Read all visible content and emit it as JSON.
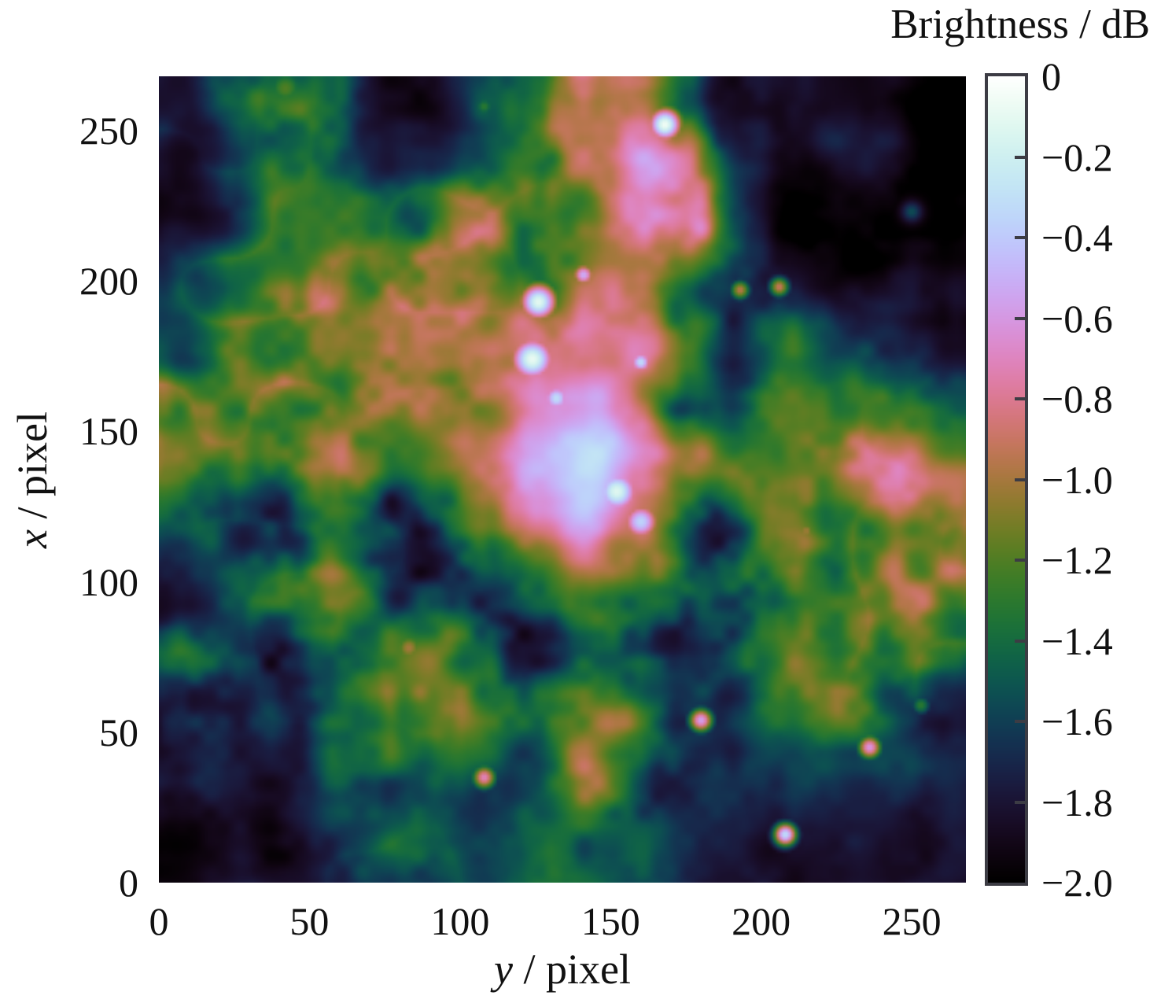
{
  "figure": {
    "xlabel": {
      "variable": "y",
      "rest": " / pixel"
    },
    "ylabel": {
      "variable": "x",
      "rest": " / pixel"
    }
  },
  "chart_data": {
    "type": "heatmap",
    "xlabel": "y / pixel",
    "ylabel": "x / pixel",
    "x_range": [
      0,
      268
    ],
    "y_range": [
      0,
      268
    ],
    "x_ticks": [
      0,
      50,
      100,
      150,
      200,
      250
    ],
    "y_ticks": [
      0,
      50,
      100,
      150,
      200,
      250
    ],
    "grid": "off",
    "colorbar": {
      "label": "Brightness / dB",
      "range": [
        -2.0,
        0
      ],
      "colormap": "cubehelix",
      "ticks": [
        {
          "value": 0,
          "label": "0"
        },
        {
          "value": -0.2,
          "label": "−0.2"
        },
        {
          "value": -0.4,
          "label": "−0.4"
        },
        {
          "value": -0.6,
          "label": "−0.6"
        },
        {
          "value": -0.8,
          "label": "−0.8"
        },
        {
          "value": -1.0,
          "label": "−1.0"
        },
        {
          "value": -1.2,
          "label": "−1.2"
        },
        {
          "value": -1.4,
          "label": "−1.4"
        },
        {
          "value": -1.6,
          "label": "−1.6"
        },
        {
          "value": -1.8,
          "label": "−1.8"
        },
        {
          "value": -2.0,
          "label": "−2.0"
        }
      ]
    },
    "brightness_grid_db": {
      "note": "Coarse 16x16 estimate of brightness (dB) read from the map. Rows top to bottom = x from 268 to 0; columns left to right = y from 0 to 268.",
      "values": [
        [
          -1.85,
          -1.6,
          -1.35,
          -1.55,
          -1.8,
          -1.75,
          -1.6,
          -1.5,
          -1.0,
          -0.85,
          -1.1,
          -1.75,
          -1.9,
          -1.9,
          -1.85,
          -1.9
        ],
        [
          -1.9,
          -1.75,
          -1.45,
          -1.5,
          -1.75,
          -1.7,
          -1.55,
          -1.5,
          -0.9,
          -0.75,
          -0.9,
          -1.6,
          -1.85,
          -1.8,
          -1.75,
          -1.9
        ],
        [
          -1.85,
          -1.7,
          -1.6,
          -1.5,
          -1.6,
          -1.5,
          -1.45,
          -1.35,
          -0.95,
          -0.85,
          -1.2,
          -1.7,
          -1.8,
          -1.85,
          -1.8,
          -1.85
        ],
        [
          -1.8,
          -1.65,
          -1.55,
          -1.45,
          -1.5,
          -1.4,
          -1.35,
          -1.15,
          -0.9,
          -0.95,
          -1.3,
          -1.6,
          -1.75,
          -1.8,
          -1.75,
          -1.8
        ],
        [
          -1.75,
          -1.55,
          -1.4,
          -1.35,
          -1.3,
          -1.25,
          -1.2,
          -1.0,
          -0.85,
          -0.9,
          -1.4,
          -1.65,
          -1.7,
          -1.7,
          -1.65,
          -1.75
        ],
        [
          -1.7,
          -1.45,
          -1.3,
          -1.25,
          -1.2,
          -1.1,
          -0.95,
          -0.75,
          -0.8,
          -0.75,
          -1.05,
          -1.6,
          -1.55,
          -1.6,
          -1.6,
          -1.7
        ],
        [
          -1.45,
          -1.4,
          -1.3,
          -1.2,
          -1.05,
          -0.9,
          -0.85,
          -0.5,
          -0.55,
          -0.8,
          -1.2,
          -1.5,
          -1.45,
          -1.55,
          -1.5,
          -1.6
        ],
        [
          -1.4,
          -1.35,
          -1.25,
          -1.15,
          -1.0,
          -0.85,
          -0.75,
          -0.45,
          -0.4,
          -0.75,
          -1.15,
          -1.4,
          -1.35,
          -1.45,
          -1.4,
          -1.55
        ],
        [
          -1.6,
          -1.5,
          -1.4,
          -1.3,
          -1.2,
          -1.1,
          -0.9,
          -0.5,
          -0.45,
          -0.8,
          -1.1,
          -1.3,
          -1.25,
          -1.35,
          -1.3,
          -1.5
        ],
        [
          -1.7,
          -1.55,
          -1.45,
          -1.35,
          -1.25,
          -1.3,
          -1.1,
          -0.85,
          -0.7,
          -0.95,
          -1.2,
          -1.25,
          -1.2,
          -1.3,
          -1.25,
          -1.45
        ],
        [
          -1.75,
          -1.5,
          -1.35,
          -1.3,
          -1.15,
          -1.05,
          -1.25,
          -1.1,
          -0.85,
          -1.0,
          -1.25,
          -1.35,
          -1.3,
          -1.25,
          -1.3,
          -1.4
        ],
        [
          -1.3,
          -1.45,
          -1.4,
          -1.35,
          -1.2,
          -1.0,
          -1.3,
          -1.5,
          -1.2,
          -1.15,
          -1.3,
          -1.4,
          -1.45,
          -1.35,
          -1.4,
          -1.5
        ],
        [
          -1.4,
          -1.5,
          -1.55,
          -1.45,
          -1.4,
          -1.35,
          -1.5,
          -1.5,
          -1.45,
          -1.3,
          -1.5,
          -1.55,
          -1.6,
          -1.5,
          -1.55,
          -1.6
        ],
        [
          -1.6,
          -1.65,
          -1.6,
          -1.55,
          -1.5,
          -1.55,
          -1.65,
          -1.7,
          -1.5,
          -1.45,
          -1.6,
          -1.7,
          -1.75,
          -1.7,
          -1.65,
          -1.7
        ],
        [
          -1.75,
          -1.7,
          -1.65,
          -1.6,
          -1.65,
          -1.7,
          -1.75,
          -1.65,
          -1.5,
          -1.55,
          -1.7,
          -1.75,
          -1.8,
          -1.8,
          -1.75,
          -1.8
        ],
        [
          -1.8,
          -1.75,
          -1.7,
          -1.65,
          -1.6,
          -1.65,
          -1.7,
          -1.6,
          -1.55,
          -1.6,
          -1.75,
          -1.8,
          -1.85,
          -1.85,
          -1.8,
          -1.85
        ]
      ]
    },
    "point_sources": [
      {
        "y": 168,
        "x": 252,
        "peak_db": -0.05,
        "sigma": 4.5
      },
      {
        "y": 126,
        "x": 193,
        "peak_db": -0.1,
        "sigma": 5
      },
      {
        "y": 124,
        "x": 174,
        "peak_db": -0.08,
        "sigma": 6
      },
      {
        "y": 132,
        "x": 161,
        "peak_db": -0.3,
        "sigma": 4
      },
      {
        "y": 152,
        "x": 130,
        "peak_db": -0.12,
        "sigma": 6
      },
      {
        "y": 160,
        "x": 120,
        "peak_db": -0.35,
        "sigma": 5
      },
      {
        "y": 147,
        "x": 140,
        "peak_db": -0.3,
        "sigma": 4
      },
      {
        "y": 160,
        "x": 173,
        "peak_db": -0.3,
        "sigma": 3
      },
      {
        "y": 141,
        "x": 202,
        "peak_db": -0.5,
        "sigma": 3
      },
      {
        "y": 123,
        "x": 147,
        "peak_db": -0.55,
        "sigma": 3
      },
      {
        "y": 108,
        "x": 35,
        "peak_db": -0.7,
        "sigma": 3
      },
      {
        "y": 83,
        "x": 78,
        "peak_db": -1.0,
        "sigma": 4
      },
      {
        "y": 180,
        "x": 54,
        "peak_db": -0.55,
        "sigma": 3
      },
      {
        "y": 208,
        "x": 16,
        "peak_db": -0.3,
        "sigma": 2.8
      },
      {
        "y": 236,
        "x": 45,
        "peak_db": -0.6,
        "sigma": 3
      },
      {
        "y": 215,
        "x": 117,
        "peak_db": -1.0,
        "sigma": 2.5
      },
      {
        "y": 206,
        "x": 198,
        "peak_db": -0.9,
        "sigma": 2.5
      },
      {
        "y": 193,
        "x": 197,
        "peak_db": -0.95,
        "sigma": 2.5
      },
      {
        "y": 226,
        "x": 129,
        "peak_db": -1.15,
        "sigma": 2.5
      },
      {
        "y": 253,
        "x": 59,
        "peak_db": -1.3,
        "sigma": 2.5
      },
      {
        "y": 250,
        "x": 223,
        "peak_db": -1.55,
        "sigma": 2.5
      },
      {
        "y": 42,
        "x": 264,
        "peak_db": -1.2,
        "sigma": 5
      },
      {
        "y": 255,
        "x": 157,
        "peak_db": -1.3,
        "sigma": 4
      },
      {
        "y": 108,
        "x": 258,
        "peak_db": -1.3,
        "sigma": 2.5
      }
    ]
  }
}
